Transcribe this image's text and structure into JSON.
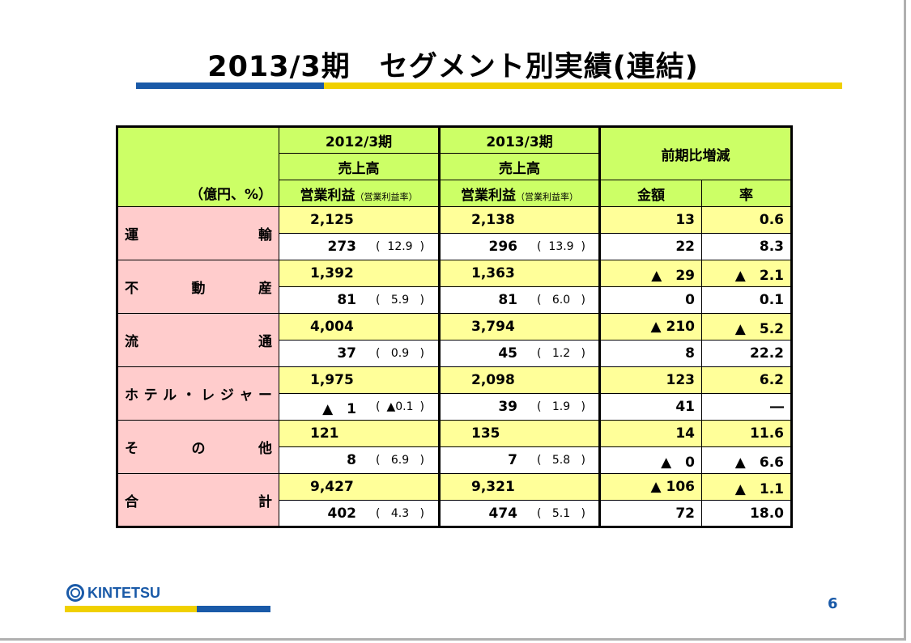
{
  "title": "2013/3期　セグメント別実績(連結)",
  "colors": {
    "blue": "#1a5aa8",
    "yellow": "#f0d000",
    "green_header": "#ccff66",
    "pink": "#ffcccc",
    "light_yellow": "#ffff99"
  },
  "table": {
    "unit": "（億円、%）",
    "period_prev": "2012/3期",
    "period_curr": "2013/3期",
    "change_header": "前期比増減",
    "sales_label": "売上高",
    "op_label": "営業利益",
    "op_rate_label": "（営業利益率）",
    "amount_label": "金額",
    "rate_label": "率",
    "rows": [
      {
        "name": [
          "運",
          "輸"
        ],
        "prev_sales": "2,125",
        "prev_op": "273",
        "prev_rate": "12.9",
        "curr_sales": "2,138",
        "curr_op": "296",
        "curr_rate": "13.9",
        "chg_sales_amt": "13",
        "chg_sales_rate": "0.6",
        "chg_op_amt": "22",
        "chg_op_rate": "8.3"
      },
      {
        "name": [
          "不",
          "動",
          "産"
        ],
        "prev_sales": "1,392",
        "prev_op": "81",
        "prev_rate": "5.9",
        "curr_sales": "1,363",
        "curr_op": "81",
        "curr_rate": "6.0",
        "chg_sales_amt": "▲　29",
        "chg_sales_rate": "▲　2.1",
        "chg_op_amt": "0",
        "chg_op_rate": "0.1"
      },
      {
        "name": [
          "流",
          "通"
        ],
        "prev_sales": "4,004",
        "prev_op": "37",
        "prev_rate": "0.9",
        "curr_sales": "3,794",
        "curr_op": "45",
        "curr_rate": "1.2",
        "chg_sales_amt": "▲ 210",
        "chg_sales_rate": "▲　5.2",
        "chg_op_amt": "8",
        "chg_op_rate": "22.2"
      },
      {
        "name": [
          "ホ",
          "テ",
          "ル",
          "・",
          "レ",
          "ジ",
          "ャ",
          "ー"
        ],
        "prev_sales": "1,975",
        "prev_op": "▲　1",
        "prev_rate": "▲0.1",
        "curr_sales": "2,098",
        "curr_op": "39",
        "curr_rate": "1.9",
        "chg_sales_amt": "123",
        "chg_sales_rate": "6.2",
        "chg_op_amt": "41",
        "chg_op_rate": "―"
      },
      {
        "name": [
          "そ",
          "の",
          "他"
        ],
        "prev_sales": "121",
        "prev_op": "8",
        "prev_rate": "6.9",
        "curr_sales": "135",
        "curr_op": "7",
        "curr_rate": "5.8",
        "chg_sales_amt": "14",
        "chg_sales_rate": "11.6",
        "chg_op_amt": "▲　0",
        "chg_op_rate": "▲　6.6"
      },
      {
        "name": [
          "合",
          "計"
        ],
        "prev_sales": "9,427",
        "prev_op": "402",
        "prev_rate": "4.3",
        "curr_sales": "9,321",
        "curr_op": "474",
        "curr_rate": "5.1",
        "chg_sales_amt": "▲ 106",
        "chg_sales_rate": "▲　1.1",
        "chg_op_amt": "72",
        "chg_op_rate": "18.0"
      }
    ]
  },
  "footer": {
    "logo_text": "KINTETSU",
    "page_number": "6"
  }
}
